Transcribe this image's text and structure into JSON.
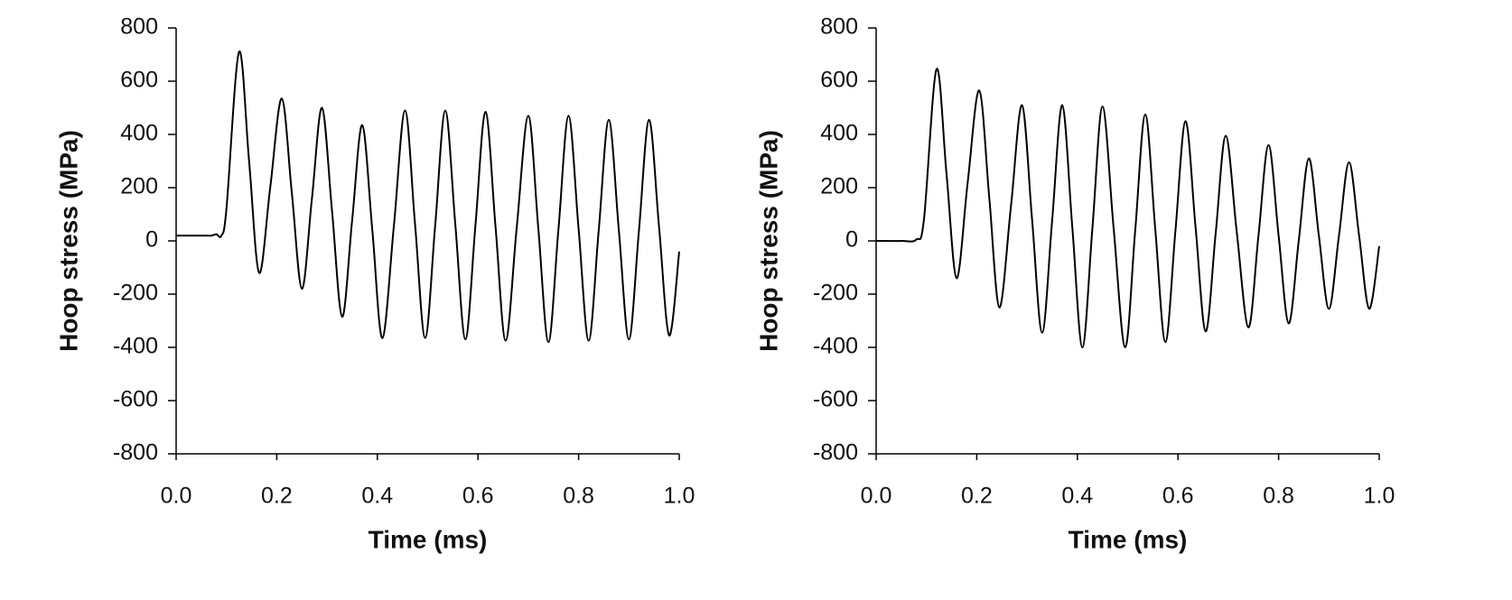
{
  "chart_data": [
    {
      "type": "line",
      "x_label": "Time (ms)",
      "y_label": "Hoop stress (MPa)",
      "xlim": [
        0,
        1
      ],
      "xticks": [
        {
          "value": 0,
          "label": "0.0"
        },
        0.2,
        0.4,
        0.6,
        0.8,
        {
          "value": 1,
          "label": "1.0"
        }
      ],
      "ylim": [
        -800,
        800
      ],
      "yticks": [
        -800,
        -600,
        -400,
        -200,
        0,
        200,
        400,
        600,
        800
      ],
      "grid": false,
      "series": [
        {
          "color": "#000000",
          "x": [
            0,
            0.05,
            0.07,
            0.08,
            0.09,
            0.1,
            0.125,
            0.145,
            0.165,
            0.187,
            0.21,
            0.23,
            0.25,
            0.27,
            0.29,
            0.31,
            0.33,
            0.35,
            0.37,
            0.39,
            0.41,
            0.433,
            0.455,
            0.475,
            0.495,
            0.515,
            0.535,
            0.555,
            0.575,
            0.595,
            0.615,
            0.635,
            0.655,
            0.677,
            0.7,
            0.72,
            0.74,
            0.76,
            0.78,
            0.8,
            0.82,
            0.84,
            0.86,
            0.88,
            0.9,
            0.92,
            0.94,
            0.96,
            0.98,
            1.0
          ],
          "values": [
            20,
            20,
            20,
            25,
            20,
            120,
            710,
            300,
            -120,
            200,
            535,
            180,
            -180,
            160,
            500,
            110,
            -285,
            80,
            435,
            40,
            -365,
            60,
            490,
            60,
            -365,
            60,
            490,
            60,
            -370,
            60,
            485,
            50,
            -375,
            50,
            470,
            45,
            -380,
            45,
            470,
            45,
            -375,
            40,
            455,
            40,
            -370,
            40,
            455,
            50,
            -355,
            -40
          ]
        }
      ]
    },
    {
      "type": "line",
      "x_label": "Time (ms)",
      "y_label": "Hoop stress (MPa)",
      "xlim": [
        0,
        1
      ],
      "xticks": [
        {
          "value": 0,
          "label": "0.0"
        },
        0.2,
        0.4,
        0.6,
        0.8,
        {
          "value": 1,
          "label": "1.0"
        }
      ],
      "ylim": [
        -800,
        800
      ],
      "yticks": [
        -800,
        -600,
        -400,
        -200,
        0,
        200,
        400,
        600,
        800
      ],
      "grid": false,
      "series": [
        {
          "color": "#000000",
          "x": [
            0,
            0.05,
            0.08,
            0.095,
            0.12,
            0.14,
            0.16,
            0.182,
            0.205,
            0.225,
            0.245,
            0.268,
            0.29,
            0.31,
            0.33,
            0.35,
            0.37,
            0.39,
            0.41,
            0.43,
            0.45,
            0.472,
            0.495,
            0.515,
            0.535,
            0.555,
            0.575,
            0.595,
            0.615,
            0.635,
            0.655,
            0.675,
            0.695,
            0.717,
            0.74,
            0.76,
            0.78,
            0.8,
            0.82,
            0.84,
            0.86,
            0.88,
            0.9,
            0.92,
            0.94,
            0.96,
            0.98,
            1.0
          ],
          "values": [
            0,
            0,
            5,
            80,
            645,
            250,
            -140,
            220,
            565,
            160,
            -250,
            130,
            510,
            80,
            -345,
            80,
            510,
            50,
            -400,
            50,
            505,
            50,
            -400,
            40,
            475,
            40,
            -380,
            40,
            450,
            50,
            -340,
            30,
            395,
            30,
            -325,
            20,
            360,
            20,
            -310,
            0,
            310,
            20,
            -255,
            20,
            295,
            20,
            -255,
            -20
          ]
        }
      ]
    }
  ]
}
